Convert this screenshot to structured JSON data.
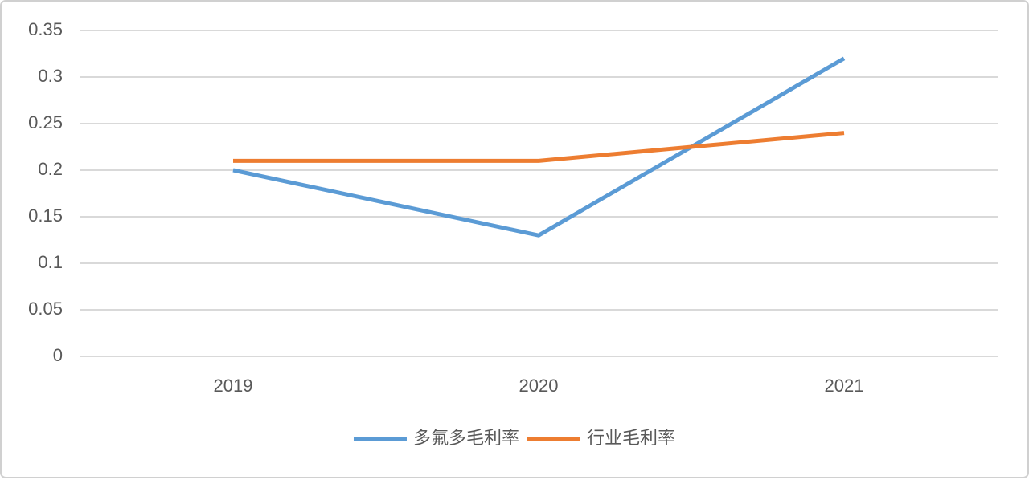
{
  "chart_data": {
    "type": "line",
    "categories": [
      "2019",
      "2020",
      "2021"
    ],
    "series": [
      {
        "name": "多氟多毛利率",
        "color": "#5b9bd5",
        "values": [
          0.2,
          0.13,
          0.32
        ]
      },
      {
        "name": "行业毛利率",
        "color": "#ed7d31",
        "values": [
          0.21,
          0.21,
          0.24
        ]
      }
    ],
    "ylim": [
      0,
      0.35
    ],
    "yticks": [
      0,
      0.05,
      0.1,
      0.15,
      0.2,
      0.25,
      0.3,
      0.35
    ],
    "grid": true,
    "legend": "bottom"
  }
}
